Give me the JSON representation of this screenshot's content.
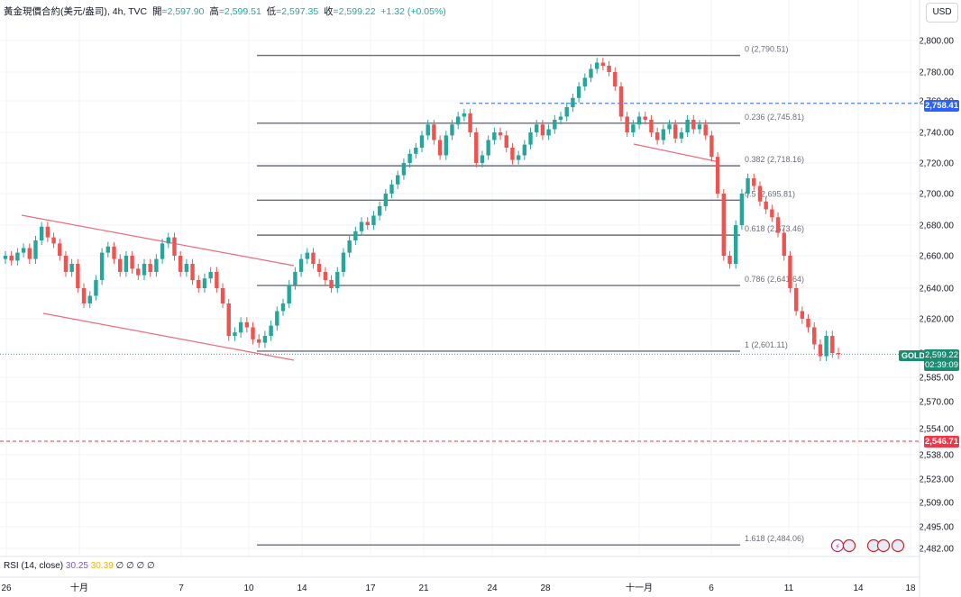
{
  "header": {
    "symbol": "黃金現價合約(美元/盎司)",
    "interval": "4h",
    "source": "TVC",
    "open_label": "開",
    "open": "=2,597.90",
    "high_label": "高",
    "high": "=2,599.51",
    "low_label": "低",
    "low": "=2,597.35",
    "close_label": "收",
    "close": "=2,599.22",
    "change": "+1.32 (+0.05%)"
  },
  "currency": "USD",
  "rsi": {
    "label": "RSI (14, close)",
    "value1": "30.25",
    "value2": "30.39",
    "rest": "∅ ∅ ∅ ∅"
  },
  "price_tags": {
    "blue_level": "2,758.41",
    "red_level": "2,546.71",
    "symbol_tag": "GOLD",
    "last_price": "2,599.22",
    "countdown": "02:39:09"
  },
  "colors": {
    "up": "#26a69a",
    "down": "#ef5350",
    "fib_line": "#6b6e77",
    "channel": "#f06a7c",
    "blue_dash": "#2962ff",
    "red_dash": "#f23645",
    "grid": "#f0f3fa"
  },
  "chart_data": {
    "type": "candlestick",
    "title": "黃金現價合約(美元/盎司), 4h, TVC",
    "y_axis": {
      "ticks": [
        "2,800.00",
        "2,780.00",
        "2,760.00",
        "2,740.00",
        "2,720.00",
        "2,700.00",
        "2,680.00",
        "2,660.00",
        "2,640.00",
        "2,620.00",
        "2,600.00",
        "2,585.00",
        "2,570.00",
        "2,554.00",
        "2,538.00",
        "2,523.00",
        "2,509.00",
        "2,495.00",
        "2,482.00"
      ]
    },
    "x_axis": {
      "ticks": [
        "26",
        "十月",
        "7",
        "10",
        "14",
        "17",
        "21",
        "24",
        "28",
        "十一月",
        "6",
        "11",
        "14",
        "18"
      ]
    },
    "fibonacci": [
      {
        "level": "0",
        "price": 2790.51,
        "label": "0 (2,790.51)"
      },
      {
        "level": "0.236",
        "price": 2745.81,
        "label": "0.236 (2,745.81)"
      },
      {
        "level": "0.382",
        "price": 2718.16,
        "label": "0.382 (2,718.16)"
      },
      {
        "level": "0.5",
        "price": 2695.81,
        "label": "0.5 (2,695.81)"
      },
      {
        "level": "0.618",
        "price": 2673.46,
        "label": "0.618 (2,673.46)"
      },
      {
        "level": "0.786",
        "price": 2641.64,
        "label": "0.786 (2,641.64)"
      },
      {
        "level": "1",
        "price": 2601.11,
        "label": "1 (2,601.11)"
      },
      {
        "level": "1.618",
        "price": 2484.06,
        "label": "1.618 (2,484.06)"
      }
    ],
    "horizontal_levels": [
      {
        "price": 2758.41,
        "style": "dashed",
        "color": "blue"
      },
      {
        "price": 2546.71,
        "style": "dashed",
        "color": "red"
      }
    ],
    "last_price": 2599.22,
    "closes": [
      2660,
      2657,
      2662,
      2665,
      2658,
      2670,
      2679,
      2672,
      2668,
      2660,
      2650,
      2655,
      2640,
      2630,
      2635,
      2645,
      2662,
      2666,
      2658,
      2650,
      2660,
      2652,
      2648,
      2655,
      2650,
      2658,
      2668,
      2672,
      2660,
      2650,
      2655,
      2645,
      2640,
      2646,
      2650,
      2640,
      2630,
      2610,
      2612,
      2618,
      2615,
      2608,
      2606,
      2610,
      2616,
      2625,
      2630,
      2642,
      2650,
      2658,
      2662,
      2655,
      2650,
      2645,
      2640,
      2650,
      2662,
      2670,
      2676,
      2682,
      2680,
      2686,
      2692,
      2700,
      2706,
      2712,
      2720,
      2726,
      2730,
      2738,
      2745,
      2735,
      2725,
      2738,
      2745,
      2750,
      2752,
      2740,
      2720,
      2725,
      2735,
      2740,
      2738,
      2730,
      2722,
      2725,
      2732,
      2740,
      2745,
      2738,
      2742,
      2748,
      2750,
      2756,
      2762,
      2770,
      2776,
      2782,
      2786,
      2784,
      2780,
      2770,
      2750,
      2740,
      2745,
      2750,
      2748,
      2740,
      2735,
      2742,
      2745,
      2736,
      2740,
      2748,
      2742,
      2745,
      2738,
      2724,
      2700,
      2660,
      2655,
      2680,
      2700,
      2710,
      2705,
      2695,
      2690,
      2685,
      2675,
      2660,
      2640,
      2625,
      2620,
      2615,
      2605,
      2598,
      2610,
      2600,
      2599.22
    ]
  }
}
